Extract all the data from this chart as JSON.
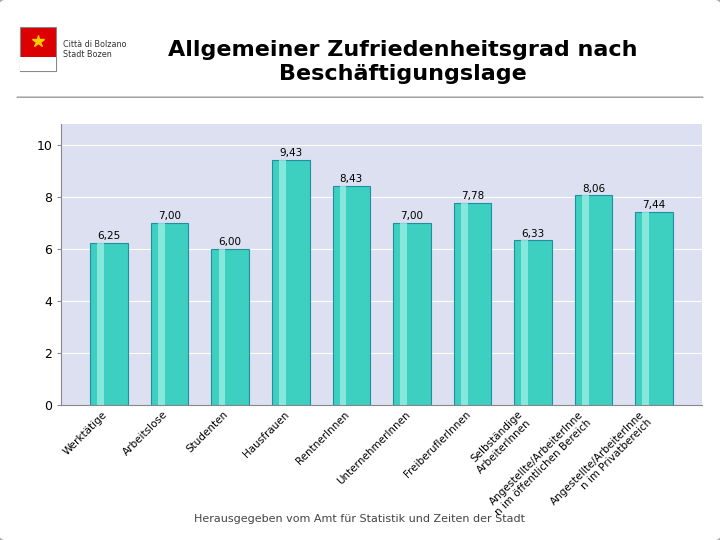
{
  "title": "Allgemeiner Zufriedenheitsgrad nach\nBeschäftigungslage",
  "categories": [
    "Werktätige",
    "Arbeitslose",
    "Studenten",
    "Hausfrauen",
    "RentnerInnen",
    "UnternehmerInnen",
    "FreiberuflerInnen",
    "Selbständige\nArbeiterInnen",
    "Angestellte/ArbeiterInne\nn im öffentlichen Bereich",
    "Angestellte/ArbeiterInne\nn im Privatbereich"
  ],
  "values": [
    6.25,
    7.0,
    6.0,
    9.43,
    8.43,
    7.0,
    7.78,
    6.33,
    8.06,
    7.44
  ],
  "bar_color": "#3dcfc0",
  "bar_highlight": "#a0f0e8",
  "bar_edge": "#2090a0",
  "plot_bg_color": "#dce0f0",
  "outer_bg_color": "#f0f0f0",
  "border_color": "#aaaaaa",
  "ylabel_values": [
    0,
    2,
    4,
    6,
    8,
    10
  ],
  "ylim": [
    0,
    10.8
  ],
  "footer": "Herausgegeben vom Amt für Statistik und Zeiten der Stadt",
  "title_fontsize": 16,
  "tick_fontsize": 7.5,
  "value_fontsize": 7.5,
  "footer_fontsize": 8,
  "line_color": "#999999",
  "logo_flag_red": "#dd0000",
  "logo_flag_white": "#ffffff",
  "logo_star_color": "#ffcc00",
  "logo_text": "Città di Bolzano\nStadt Bozen"
}
